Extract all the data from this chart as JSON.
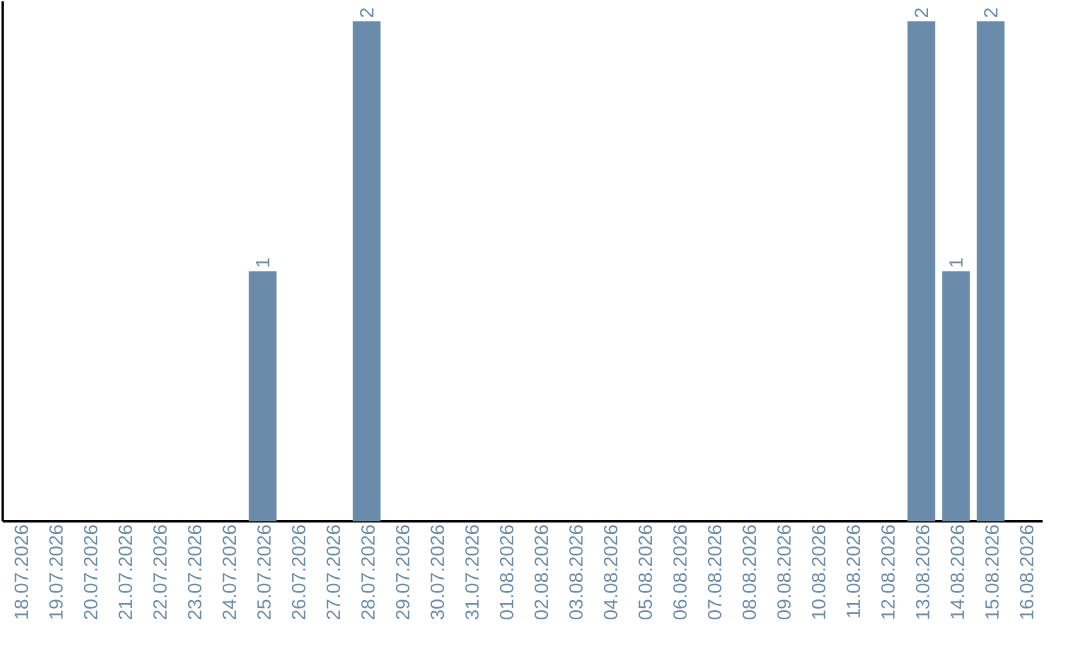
{
  "chart_data": {
    "type": "bar",
    "categories": [
      "18.07.2026",
      "19.07.2026",
      "20.07.2026",
      "21.07.2026",
      "22.07.2026",
      "23.07.2026",
      "24.07.2026",
      "25.07.2026",
      "26.07.2026",
      "27.07.2026",
      "28.07.2026",
      "29.07.2026",
      "30.07.2026",
      "31.07.2026",
      "01.08.2026",
      "02.08.2026",
      "03.08.2026",
      "04.08.2026",
      "05.08.2026",
      "06.08.2026",
      "07.08.2026",
      "08.08.2026",
      "09.08.2026",
      "10.08.2026",
      "11.08.2026",
      "12.08.2026",
      "13.08.2026",
      "14.08.2026",
      "15.08.2026",
      "16.08.2026"
    ],
    "values": [
      0,
      0,
      0,
      0,
      0,
      0,
      0,
      1,
      0,
      0,
      2,
      0,
      0,
      0,
      0,
      0,
      0,
      0,
      0,
      0,
      0,
      0,
      0,
      0,
      0,
      0,
      2,
      1,
      2,
      0
    ],
    "value_labels": [
      null,
      null,
      null,
      null,
      null,
      null,
      null,
      "1",
      null,
      null,
      "2",
      null,
      null,
      null,
      null,
      null,
      null,
      null,
      null,
      null,
      null,
      null,
      null,
      null,
      null,
      null,
      "2",
      "1",
      "2",
      null
    ],
    "color": "#6a8caa",
    "ylim": [
      0,
      2.08
    ],
    "tick_labels": "x"
  }
}
